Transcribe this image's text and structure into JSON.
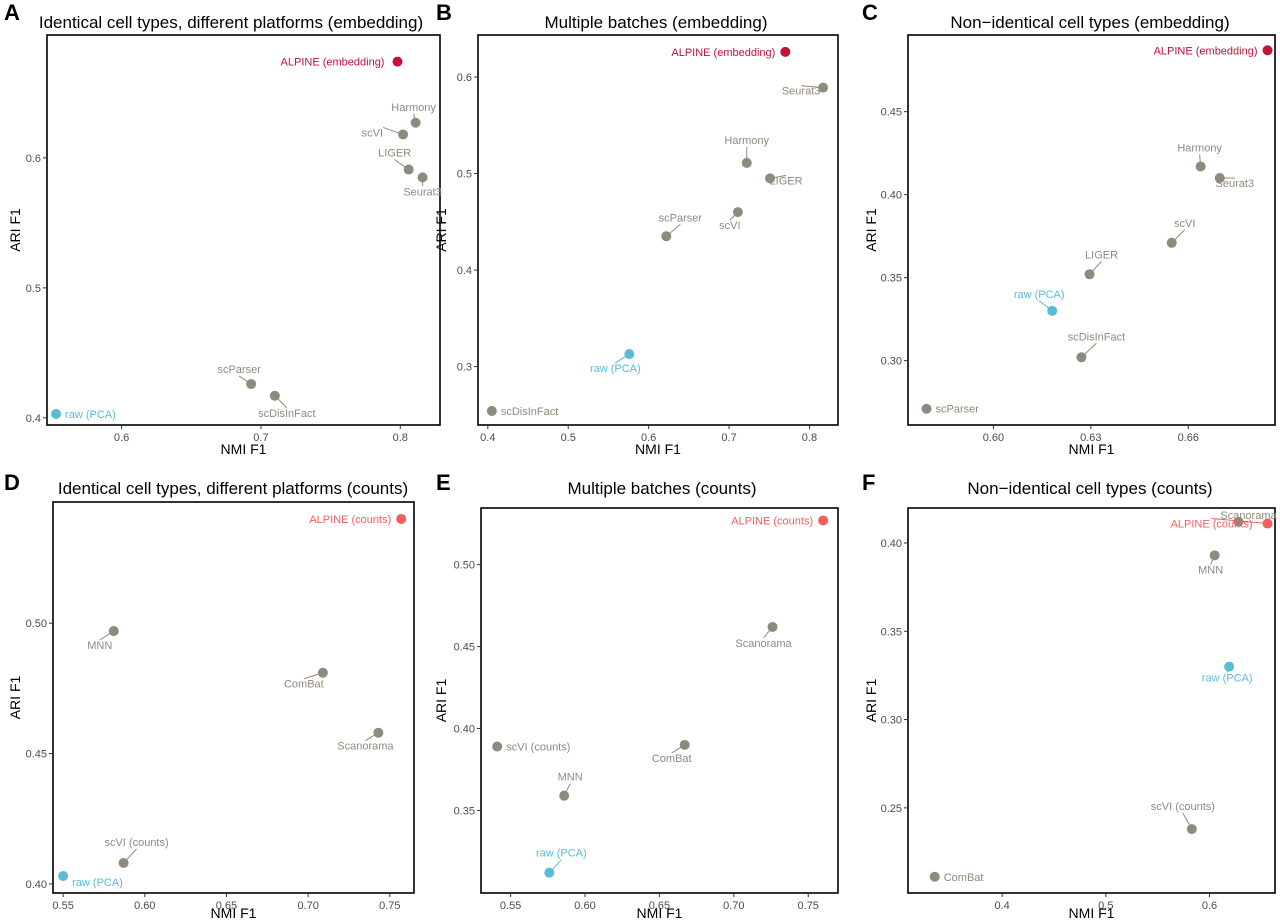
{
  "colors": {
    "method": "#8f8a7e",
    "raw": "#5bbcd6",
    "alpine_embedding": "#c2113a",
    "alpine_counts": "#f2605c"
  },
  "chart_data": [
    {
      "type": "scatter",
      "panel": "A",
      "title": "Identical cell types, different platforms (embedding)",
      "xlabel": "NMI F1",
      "ylabel": "ARI F1",
      "xlim": [
        0.5465,
        0.8285
      ],
      "ylim": [
        0.3945,
        0.6945
      ],
      "xticks": [
        0.6,
        0.7,
        0.8
      ],
      "xtick_labels": [
        "0.6",
        "0.7",
        "0.8"
      ],
      "yticks": [
        0.4,
        0.5,
        0.6
      ],
      "ytick_labels": [
        "0.4",
        "0.5",
        "0.6"
      ],
      "points": [
        {
          "label": "ALPINE (embedding)",
          "x": 0.798,
          "y": 0.674,
          "color": "alpine_embedding"
        },
        {
          "label": "Harmony",
          "x": 0.811,
          "y": 0.627,
          "color": "method"
        },
        {
          "label": "scVI",
          "x": 0.802,
          "y": 0.618,
          "color": "method"
        },
        {
          "label": "LIGER",
          "x": 0.806,
          "y": 0.591,
          "color": "method"
        },
        {
          "label": "Seurat3",
          "x": 0.816,
          "y": 0.585,
          "color": "method"
        },
        {
          "label": "scParser",
          "x": 0.693,
          "y": 0.426,
          "color": "method"
        },
        {
          "label": "scDisInFact",
          "x": 0.71,
          "y": 0.417,
          "color": "method"
        },
        {
          "label": "raw (PCA)",
          "x": 0.553,
          "y": 0.403,
          "color": "raw"
        }
      ]
    },
    {
      "type": "scatter",
      "panel": "B",
      "title": "Multiple batches (embedding)",
      "xlabel": "NMI F1",
      "ylabel": "ARI F1",
      "xlim": [
        0.3878,
        0.8355
      ],
      "ylim": [
        0.2395,
        0.6435
      ],
      "xticks": [
        0.4,
        0.5,
        0.6,
        0.7,
        0.8
      ],
      "xtick_labels": [
        "0.4",
        "0.5",
        "0.6",
        "0.7",
        "0.8"
      ],
      "yticks": [
        0.3,
        0.4,
        0.5,
        0.6
      ],
      "ytick_labels": [
        "0.3",
        "0.4",
        "0.5",
        "0.6"
      ],
      "points": [
        {
          "label": "ALPINE (embedding)",
          "x": 0.77,
          "y": 0.626,
          "color": "alpine_embedding"
        },
        {
          "label": "Seurat3",
          "x": 0.817,
          "y": 0.589,
          "color": "method"
        },
        {
          "label": "Harmony",
          "x": 0.722,
          "y": 0.511,
          "color": "method"
        },
        {
          "label": "LIGER",
          "x": 0.751,
          "y": 0.495,
          "color": "method"
        },
        {
          "label": "scVI",
          "x": 0.711,
          "y": 0.46,
          "color": "method"
        },
        {
          "label": "scParser",
          "x": 0.622,
          "y": 0.435,
          "color": "method"
        },
        {
          "label": "raw (PCA)",
          "x": 0.576,
          "y": 0.313,
          "color": "raw"
        },
        {
          "label": "scDisInFact",
          "x": 0.405,
          "y": 0.254,
          "color": "method"
        }
      ]
    },
    {
      "type": "scatter",
      "panel": "C",
      "title": "Non−identical cell types (embedding)",
      "xlabel": "NMI F1",
      "ylabel": "ARI F1",
      "xlim": [
        0.5737,
        0.6867
      ],
      "ylim": [
        0.2612,
        0.4962
      ],
      "xticks": [
        0.6,
        0.63,
        0.66
      ],
      "xtick_labels": [
        "0.60",
        "0.63",
        "0.66"
      ],
      "yticks": [
        0.3,
        0.35,
        0.4,
        0.45
      ],
      "ytick_labels": [
        "0.30",
        "0.35",
        "0.40",
        "0.45"
      ],
      "points": [
        {
          "label": "ALPINE (embedding)",
          "x": 0.6844,
          "y": 0.487,
          "color": "alpine_embedding"
        },
        {
          "label": "Harmony",
          "x": 0.6638,
          "y": 0.417,
          "color": "method"
        },
        {
          "label": "Seurat3",
          "x": 0.6697,
          "y": 0.41,
          "color": "method"
        },
        {
          "label": "scVI",
          "x": 0.6549,
          "y": 0.371,
          "color": "method"
        },
        {
          "label": "LIGER",
          "x": 0.6296,
          "y": 0.352,
          "color": "method"
        },
        {
          "label": "raw (PCA)",
          "x": 0.6181,
          "y": 0.33,
          "color": "raw"
        },
        {
          "label": "scDisInFact",
          "x": 0.6271,
          "y": 0.302,
          "color": "method"
        },
        {
          "label": "scParser",
          "x": 0.5794,
          "y": 0.271,
          "color": "method"
        }
      ]
    },
    {
      "type": "scatter",
      "panel": "D",
      "title": "Identical cell types, different platforms (counts)",
      "xlabel": "NMI F1",
      "ylabel": "ARI F1",
      "xlim": [
        0.5438,
        0.7648
      ],
      "ylim": [
        0.3965,
        0.5465
      ],
      "xticks": [
        0.55,
        0.6,
        0.65,
        0.7,
        0.75
      ],
      "xtick_labels": [
        "0.55",
        "0.60",
        "0.65",
        "0.70",
        "0.75"
      ],
      "yticks": [
        0.4,
        0.45,
        0.5
      ],
      "ytick_labels": [
        "0.40",
        "0.45",
        "0.50"
      ],
      "points": [
        {
          "label": "ALPINE (counts)",
          "x": 0.757,
          "y": 0.54,
          "color": "alpine_counts"
        },
        {
          "label": "MNN",
          "x": 0.581,
          "y": 0.497,
          "color": "method"
        },
        {
          "label": "ComBat",
          "x": 0.709,
          "y": 0.481,
          "color": "method"
        },
        {
          "label": "Scanorama",
          "x": 0.743,
          "y": 0.458,
          "color": "method"
        },
        {
          "label": "scVI (counts)",
          "x": 0.587,
          "y": 0.408,
          "color": "method"
        },
        {
          "label": "raw (PCA)",
          "x": 0.55,
          "y": 0.403,
          "color": "raw"
        }
      ]
    },
    {
      "type": "scatter",
      "panel": "E",
      "title": "Multiple batches (counts)",
      "xlabel": "NMI F1",
      "ylabel": "ARI F1",
      "xlim": [
        0.5301,
        0.77
      ],
      "ylim": [
        0.2996,
        0.5346
      ],
      "xticks": [
        0.55,
        0.6,
        0.65,
        0.7,
        0.75
      ],
      "xtick_labels": [
        "0.55",
        "0.60",
        "0.65",
        "0.70",
        "0.75"
      ],
      "yticks": [
        0.35,
        0.4,
        0.45,
        0.5
      ],
      "ytick_labels": [
        "0.35",
        "0.40",
        "0.45",
        "0.50"
      ],
      "points": [
        {
          "label": "ALPINE (counts)",
          "x": 0.76,
          "y": 0.527,
          "color": "alpine_counts"
        },
        {
          "label": "Scanorama",
          "x": 0.726,
          "y": 0.462,
          "color": "method"
        },
        {
          "label": "scVI (counts)",
          "x": 0.541,
          "y": 0.389,
          "color": "method"
        },
        {
          "label": "ComBat",
          "x": 0.667,
          "y": 0.39,
          "color": "method"
        },
        {
          "label": "MNN",
          "x": 0.586,
          "y": 0.359,
          "color": "method"
        },
        {
          "label": "raw (PCA)",
          "x": 0.576,
          "y": 0.312,
          "color": "raw"
        }
      ]
    },
    {
      "type": "scatter",
      "panel": "F",
      "title": "Non−identical cell types (counts)",
      "xlabel": "NMI F1",
      "ylabel": "ARI F1",
      "xlim": [
        0.3092,
        0.6632
      ],
      "ylim": [
        0.2018,
        0.4198
      ],
      "xticks": [
        0.4,
        0.5,
        0.6
      ],
      "xtick_labels": [
        "0.4",
        "0.5",
        "0.6"
      ],
      "yticks": [
        0.25,
        0.3,
        0.35,
        0.4
      ],
      "ytick_labels": [
        "0.25",
        "0.30",
        "0.35",
        "0.40"
      ],
      "points": [
        {
          "label": "Scanorama",
          "x": 0.628,
          "y": 0.412,
          "color": "method"
        },
        {
          "label": "ALPINE (counts)",
          "x": 0.656,
          "y": 0.411,
          "color": "alpine_counts"
        },
        {
          "label": "MNN",
          "x": 0.605,
          "y": 0.393,
          "color": "method"
        },
        {
          "label": "raw (PCA)",
          "x": 0.619,
          "y": 0.33,
          "color": "raw"
        },
        {
          "label": "scVI (counts)",
          "x": 0.583,
          "y": 0.238,
          "color": "method"
        },
        {
          "label": "ComBat",
          "x": 0.335,
          "y": 0.211,
          "color": "method"
        }
      ]
    }
  ]
}
